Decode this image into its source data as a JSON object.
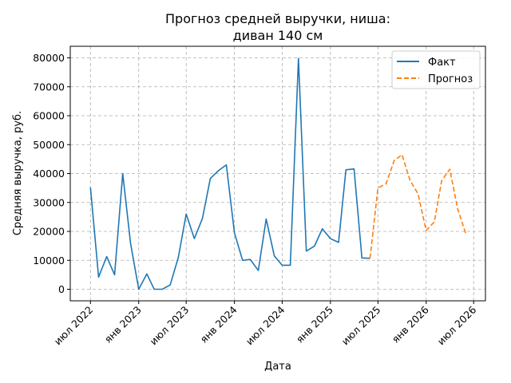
{
  "chart_data": {
    "type": "line",
    "title_line1": "Прогноз средней выручки, ниша:",
    "title_line2": "диван 140 см",
    "xlabel": "Дата",
    "ylabel": "Средняя выручка, руб.",
    "ylim": [
      -4000,
      84000
    ],
    "y_ticks": [
      0,
      10000,
      20000,
      30000,
      40000,
      50000,
      60000,
      70000,
      80000
    ],
    "x_ticks": [
      {
        "label": "июл 2022",
        "date": "2022-07-01"
      },
      {
        "label": "янв 2023",
        "date": "2023-01-01"
      },
      {
        "label": "июл 2023",
        "date": "2023-07-01"
      },
      {
        "label": "янв 2024",
        "date": "2024-01-01"
      },
      {
        "label": "июл 2024",
        "date": "2024-07-01"
      },
      {
        "label": "янв 2025",
        "date": "2025-01-01"
      },
      {
        "label": "июл 2025",
        "date": "2025-07-01"
      },
      {
        "label": "янв 2026",
        "date": "2026-01-01"
      },
      {
        "label": "июл 2026",
        "date": "2026-07-01"
      }
    ],
    "xlim": [
      "2022-04-15",
      "2026-08-15"
    ],
    "grid": true,
    "legend_position": "top-right",
    "series": [
      {
        "name": "Факт",
        "color": "#1f77b4",
        "style": "solid",
        "x": [
          "2022-07-01",
          "2022-08-01",
          "2022-09-01",
          "2022-10-01",
          "2022-11-01",
          "2022-12-01",
          "2023-01-01",
          "2023-02-01",
          "2023-03-01",
          "2023-04-01",
          "2023-05-01",
          "2023-06-01",
          "2023-07-01",
          "2023-08-01",
          "2023-09-01",
          "2023-10-01",
          "2023-11-01",
          "2023-12-01",
          "2024-01-01",
          "2024-02-01",
          "2024-03-01",
          "2024-04-01",
          "2024-05-01",
          "2024-06-01",
          "2024-07-01",
          "2024-08-01",
          "2024-09-01",
          "2024-10-01",
          "2024-11-01",
          "2024-12-01",
          "2025-01-01",
          "2025-02-01",
          "2025-03-01",
          "2025-04-01",
          "2025-05-01",
          "2025-06-01"
        ],
        "values": [
          35200,
          4200,
          11300,
          5000,
          40000,
          15800,
          0,
          5300,
          0,
          0,
          1500,
          11000,
          26000,
          17500,
          24500,
          38300,
          41000,
          43000,
          19500,
          10000,
          10300,
          6500,
          24300,
          11500,
          8300,
          8300,
          79800,
          13200,
          14900,
          20900,
          17500,
          16200,
          41300,
          41600,
          10800,
          10700
        ]
      },
      {
        "name": "Прогноз",
        "color": "#ff7f0e",
        "style": "dashed",
        "x": [
          "2025-06-01",
          "2025-07-01",
          "2025-08-01",
          "2025-09-01",
          "2025-10-01",
          "2025-11-01",
          "2025-12-01",
          "2026-01-01",
          "2026-02-01",
          "2026-03-01",
          "2026-04-01",
          "2026-05-01",
          "2026-06-01"
        ],
        "values": [
          10700,
          35000,
          36500,
          44500,
          46500,
          37500,
          33000,
          20300,
          23300,
          37500,
          41500,
          27800,
          19200
        ]
      }
    ]
  }
}
